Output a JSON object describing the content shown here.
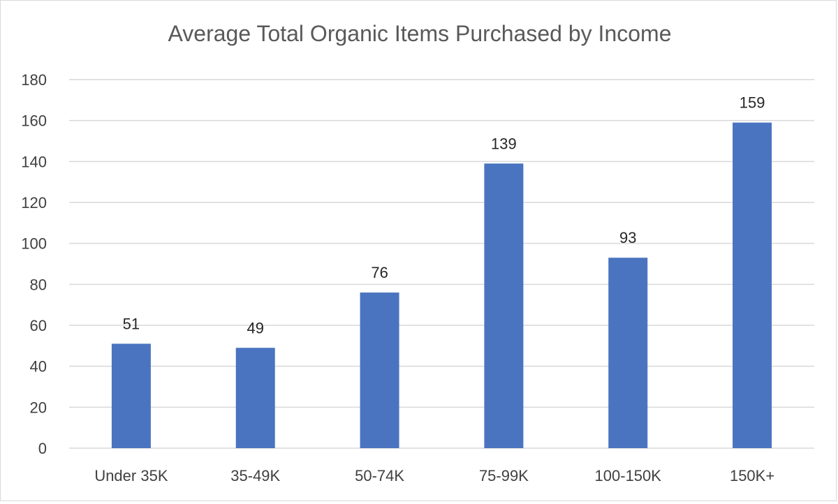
{
  "chart_data": {
    "type": "bar",
    "title": "Average Total Organic Items Purchased by Income",
    "xlabel": "",
    "ylabel": "",
    "categories": [
      "Under 35K",
      "35-49K",
      "50-74K",
      "75-99K",
      "100-150K",
      "150K+"
    ],
    "values": [
      51,
      49,
      76,
      139,
      93,
      159
    ],
    "data_labels": [
      "51",
      "49",
      "76",
      "139",
      "93",
      "159"
    ],
    "ylim": [
      0,
      180
    ],
    "yticks": [
      0,
      20,
      40,
      60,
      80,
      100,
      120,
      140,
      160,
      180
    ],
    "ytick_labels": [
      "0",
      "20",
      "40",
      "60",
      "80",
      "100",
      "120",
      "140",
      "160",
      "180"
    ],
    "grid": true,
    "legend": "none",
    "colors": {
      "bar": "#4a74c0",
      "grid": "#d9d9d9",
      "axis": "#d9d9d9",
      "title": "#595959",
      "tick": "#404040",
      "data_label": "#262626"
    }
  }
}
